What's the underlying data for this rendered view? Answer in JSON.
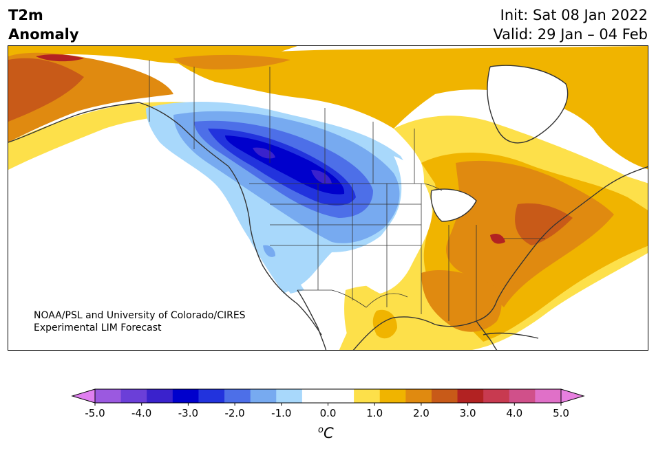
{
  "title": {
    "line1": "T2m",
    "line2": "Anomaly"
  },
  "header_right": {
    "init": "Init: Sat 08 Jan 2022",
    "valid": "Valid: 29 Jan – 04 Feb"
  },
  "credit": {
    "line1": "NOAA/PSL and University of Colorado/CIRES",
    "line2": "Experimental LIM Forecast"
  },
  "colorbar": {
    "unit": "°C",
    "unit_base": "C",
    "unit_sup": "o",
    "ticks": [
      "-5.0",
      "-4.0",
      "-3.0",
      "-2.0",
      "-1.0",
      "0.0",
      "1.0",
      "2.0",
      "3.0",
      "4.0",
      "5.0"
    ],
    "colors": [
      "#9b59e0",
      "#6b3fd8",
      "#3a22cc",
      "#0000cc",
      "#2233dd",
      "#4d6fe8",
      "#77aaf0",
      "#a8d8fb",
      "#ffffff",
      "#ffffff",
      "#fde04a",
      "#f0b400",
      "#e08a10",
      "#c85a18",
      "#b22222",
      "#c83a50",
      "#d0508a",
      "#e070c8"
    ],
    "under_color": "#e080f0",
    "over_color": "#e880e0"
  },
  "map": {
    "region": "North America",
    "field": "2m temperature anomaly (°C)",
    "colors": {
      "strong_warm": "#c85a18",
      "warm": "#e08a10",
      "mild_warm": "#f0b400",
      "slight_warm": "#fde04a",
      "neutral": "#ffffff",
      "slight_cold": "#a8d8fb",
      "mild_cold": "#77aaf0",
      "cold": "#4d6fe8",
      "very_cold": "#2233dd",
      "extreme_cold": "#0000cc",
      "deepest_cold": "#3a22cc",
      "hot_spot": "#b22222",
      "coast": "#333333"
    }
  }
}
